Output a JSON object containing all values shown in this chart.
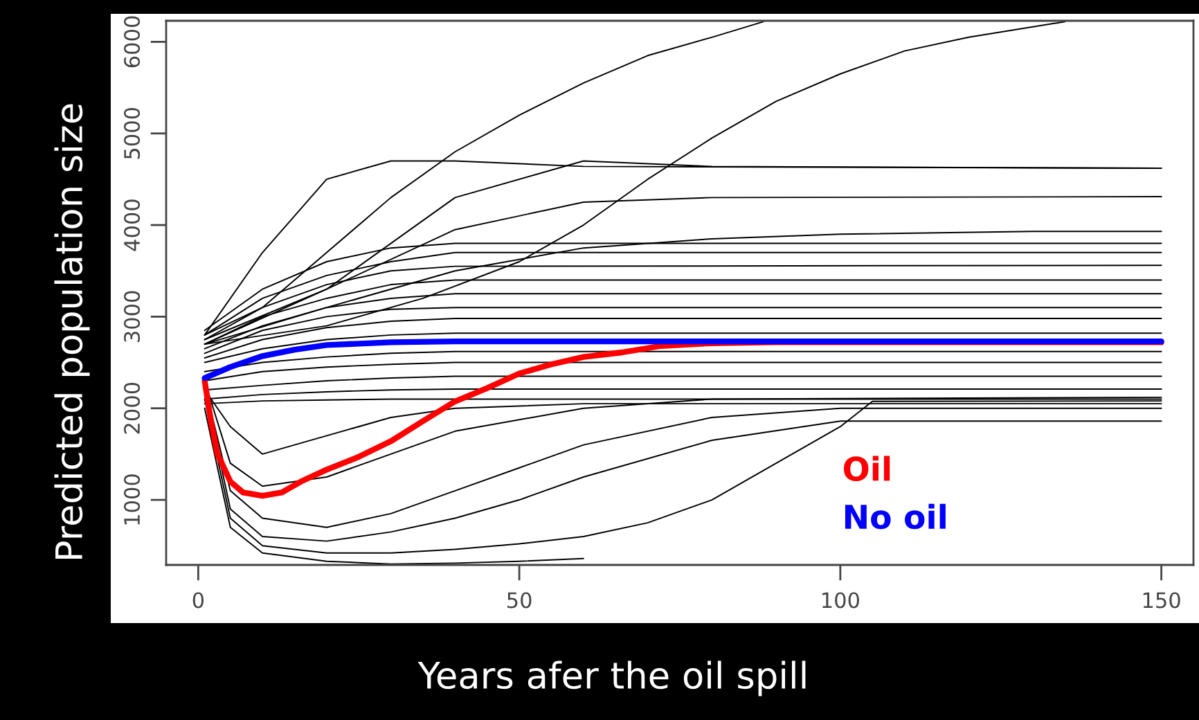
{
  "chart_data": {
    "type": "line",
    "xlabel": "Years afer the oil spill",
    "ylabel": "Predicted population size",
    "xlim": [
      -5,
      155
    ],
    "ylim": [
      290,
      6230
    ],
    "xticks": [
      0,
      50,
      100,
      150
    ],
    "yticks": [
      1000,
      2000,
      3000,
      4000,
      5000,
      6000
    ],
    "grid": false,
    "legend": "bottom right",
    "series": [
      {
        "color": "#000000",
        "x": [
          1,
          10,
          20,
          30,
          40,
          50,
          60,
          70,
          80,
          88
        ],
        "values": [
          2800,
          3100,
          3700,
          4300,
          4800,
          5200,
          5550,
          5850,
          6050,
          6220
        ]
      },
      {
        "color": "#000000",
        "x": [
          1,
          20,
          35,
          50,
          60,
          70,
          80,
          90,
          100,
          110,
          120,
          135
        ],
        "values": [
          2700,
          2900,
          3200,
          3600,
          4000,
          4500,
          4950,
          5350,
          5650,
          5900,
          6050,
          6220
        ]
      },
      {
        "color": "#000000",
        "x": [
          1,
          10,
          20,
          30,
          40,
          60,
          150
        ],
        "values": [
          2800,
          3700,
          4500,
          4700,
          4700,
          4640,
          4620
        ]
      },
      {
        "color": "#000000",
        "x": [
          1,
          20,
          40,
          60,
          80,
          150
        ],
        "values": [
          2700,
          3300,
          4300,
          4700,
          4640,
          4620
        ]
      },
      {
        "color": "#000000",
        "x": [
          1,
          20,
          40,
          60,
          80,
          150
        ],
        "values": [
          2750,
          3300,
          3950,
          4250,
          4300,
          4310
        ]
      },
      {
        "color": "#000000",
        "x": [
          1,
          20,
          40,
          60,
          80,
          100,
          130,
          150
        ],
        "values": [
          2700,
          3100,
          3500,
          3750,
          3850,
          3900,
          3930,
          3930
        ]
      },
      {
        "color": "#000000",
        "x": [
          1,
          10,
          20,
          30,
          40,
          150
        ],
        "values": [
          2850,
          3300,
          3600,
          3750,
          3800,
          3800
        ]
      },
      {
        "color": "#000000",
        "x": [
          1,
          10,
          20,
          30,
          40,
          150
        ],
        "values": [
          2800,
          3200,
          3450,
          3600,
          3700,
          3700
        ]
      },
      {
        "color": "#000000",
        "x": [
          1,
          10,
          20,
          30,
          40,
          150
        ],
        "values": [
          2750,
          3100,
          3350,
          3500,
          3550,
          3560
        ]
      },
      {
        "color": "#000000",
        "x": [
          1,
          10,
          20,
          30,
          40,
          150
        ],
        "values": [
          2700,
          3000,
          3200,
          3350,
          3400,
          3400
        ]
      },
      {
        "color": "#000000",
        "x": [
          1,
          10,
          20,
          30,
          40,
          150
        ],
        "values": [
          2650,
          2900,
          3100,
          3200,
          3250,
          3250
        ]
      },
      {
        "color": "#000000",
        "x": [
          1,
          10,
          20,
          30,
          40,
          150
        ],
        "values": [
          2600,
          2850,
          3000,
          3080,
          3100,
          3100
        ]
      },
      {
        "color": "#000000",
        "x": [
          1,
          10,
          20,
          30,
          40,
          150
        ],
        "values": [
          2550,
          2750,
          2880,
          2950,
          2980,
          2980
        ]
      },
      {
        "color": "#000000",
        "x": [
          1,
          10,
          20,
          30,
          40,
          150
        ],
        "values": [
          2500,
          2650,
          2750,
          2800,
          2820,
          2820
        ]
      },
      {
        "color": "#000000",
        "x": [
          1,
          10,
          20,
          30,
          40,
          150
        ],
        "values": [
          2400,
          2500,
          2560,
          2600,
          2620,
          2620
        ]
      },
      {
        "color": "#000000",
        "x": [
          1,
          10,
          20,
          30,
          40,
          150
        ],
        "values": [
          2300,
          2400,
          2450,
          2480,
          2500,
          2500
        ]
      },
      {
        "color": "#000000",
        "x": [
          1,
          10,
          20,
          30,
          40,
          150
        ],
        "values": [
          2200,
          2250,
          2300,
          2330,
          2350,
          2350
        ]
      },
      {
        "color": "#000000",
        "x": [
          1,
          10,
          20,
          30,
          40,
          150
        ],
        "values": [
          2100,
          2150,
          2180,
          2200,
          2210,
          2210
        ]
      },
      {
        "color": "#000000",
        "x": [
          1,
          10,
          20,
          30,
          40,
          150
        ],
        "values": [
          2050,
          2080,
          2090,
          2100,
          2100,
          2100
        ]
      },
      {
        "color": "#000000",
        "x": [
          1,
          5,
          10,
          20,
          30,
          40,
          60,
          150
        ],
        "values": [
          2200,
          1800,
          1500,
          1700,
          1900,
          2000,
          2050,
          2050
        ]
      },
      {
        "color": "#000000",
        "x": [
          1,
          5,
          10,
          20,
          30,
          40,
          60,
          80,
          150
        ],
        "values": [
          2300,
          1400,
          1150,
          1250,
          1500,
          1750,
          2000,
          2100,
          2120
        ]
      },
      {
        "color": "#000000",
        "x": [
          1,
          5,
          10,
          20,
          30,
          40,
          50,
          60,
          80,
          100,
          150
        ],
        "values": [
          2250,
          1100,
          800,
          700,
          850,
          1100,
          1350,
          1600,
          1900,
          2000,
          2000
        ]
      },
      {
        "color": "#000000",
        "x": [
          1,
          5,
          10,
          20,
          30,
          40,
          50,
          60,
          80,
          100,
          150
        ],
        "values": [
          2200,
          900,
          600,
          550,
          650,
          800,
          1000,
          1250,
          1650,
          1860,
          1860
        ]
      },
      {
        "color": "#000000",
        "x": [
          1,
          5,
          10,
          20,
          30,
          40,
          50,
          60,
          70,
          80,
          90,
          100,
          105,
          150
        ],
        "values": [
          2100,
          800,
          500,
          420,
          420,
          460,
          520,
          600,
          750,
          1000,
          1400,
          1800,
          2075,
          2080
        ]
      },
      {
        "color": "#000000",
        "x": [
          1,
          5,
          10,
          20,
          30,
          40,
          50,
          60
        ],
        "values": [
          2000,
          700,
          420,
          330,
          300,
          310,
          330,
          360
        ]
      },
      {
        "name": "Oil",
        "color": "#ff0000",
        "x": [
          1,
          2,
          3,
          5,
          7,
          10,
          13,
          16,
          20,
          25,
          30,
          35,
          40,
          45,
          50,
          55,
          60,
          66,
          72,
          80,
          90,
          150
        ],
        "values": [
          2300,
          1850,
          1500,
          1200,
          1080,
          1045,
          1080,
          1200,
          1330,
          1470,
          1640,
          1860,
          2075,
          2220,
          2380,
          2480,
          2560,
          2610,
          2680,
          2710,
          2720,
          2720
        ]
      },
      {
        "name": "No oil",
        "color": "#0000ff",
        "x": [
          1,
          5,
          10,
          15,
          20,
          30,
          40,
          150
        ],
        "values": [
          2330,
          2450,
          2570,
          2640,
          2690,
          2720,
          2730,
          2730
        ]
      }
    ]
  }
}
